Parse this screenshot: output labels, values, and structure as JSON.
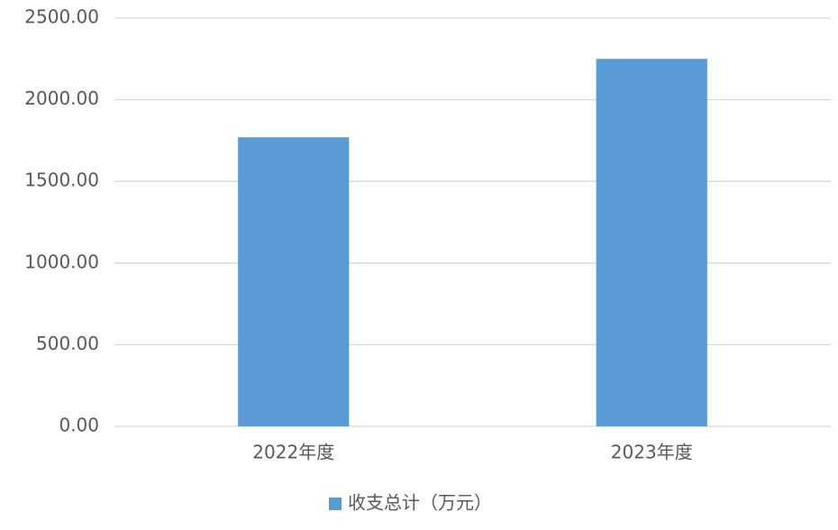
{
  "chart_data": {
    "type": "bar",
    "categories": [
      "2022年度",
      "2023年度"
    ],
    "series": [
      {
        "name": "收支总计（万元）",
        "color": "#5b9bd5",
        "values": [
          1770,
          2250
        ]
      }
    ],
    "ylim": [
      0,
      2500
    ],
    "yticks": [
      {
        "value": 0,
        "label": "0.00"
      },
      {
        "value": 500,
        "label": "500.00"
      },
      {
        "value": 1000,
        "label": "1000.00"
      },
      {
        "value": 1500,
        "label": "1500.00"
      },
      {
        "value": 2000,
        "label": "2000.00"
      },
      {
        "value": 2500,
        "label": "2500.00"
      }
    ],
    "grid": true,
    "legend": "bottom"
  }
}
